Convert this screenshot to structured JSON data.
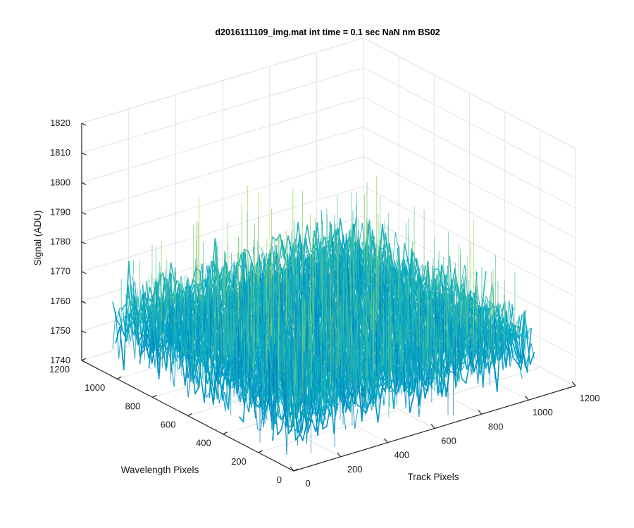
{
  "chart_data": {
    "type": "surface",
    "title": "d2016111109_img.mat int time = 0.1 sec  NaN nm BS02",
    "xlabel": "Track Pixels",
    "ylabel": "Wavelength Pixels",
    "zlabel": "Signal (ADU)",
    "xlim": [
      0,
      1200
    ],
    "ylim": [
      0,
      1200
    ],
    "zlim": [
      1740,
      1820
    ],
    "x_ticks": [
      "0",
      "200",
      "400",
      "600",
      "800",
      "1000",
      "1200"
    ],
    "y_ticks": [
      "0",
      "200",
      "400",
      "600",
      "800",
      "1000",
      "1200"
    ],
    "z_ticks": [
      "1740",
      "1750",
      "1760",
      "1770",
      "1780",
      "1790",
      "1800",
      "1810",
      "1820"
    ],
    "surface_x_range": [
      0,
      1024
    ],
    "surface_y_range": [
      0,
      1024
    ],
    "signal_mean": 1760,
    "signal_min": 1742,
    "signal_max": 1808,
    "colormap": [
      "#0072bd",
      "#00a6c8",
      "#3ec2a6",
      "#9fcf5c",
      "#e9d23a"
    ],
    "grid": true
  }
}
